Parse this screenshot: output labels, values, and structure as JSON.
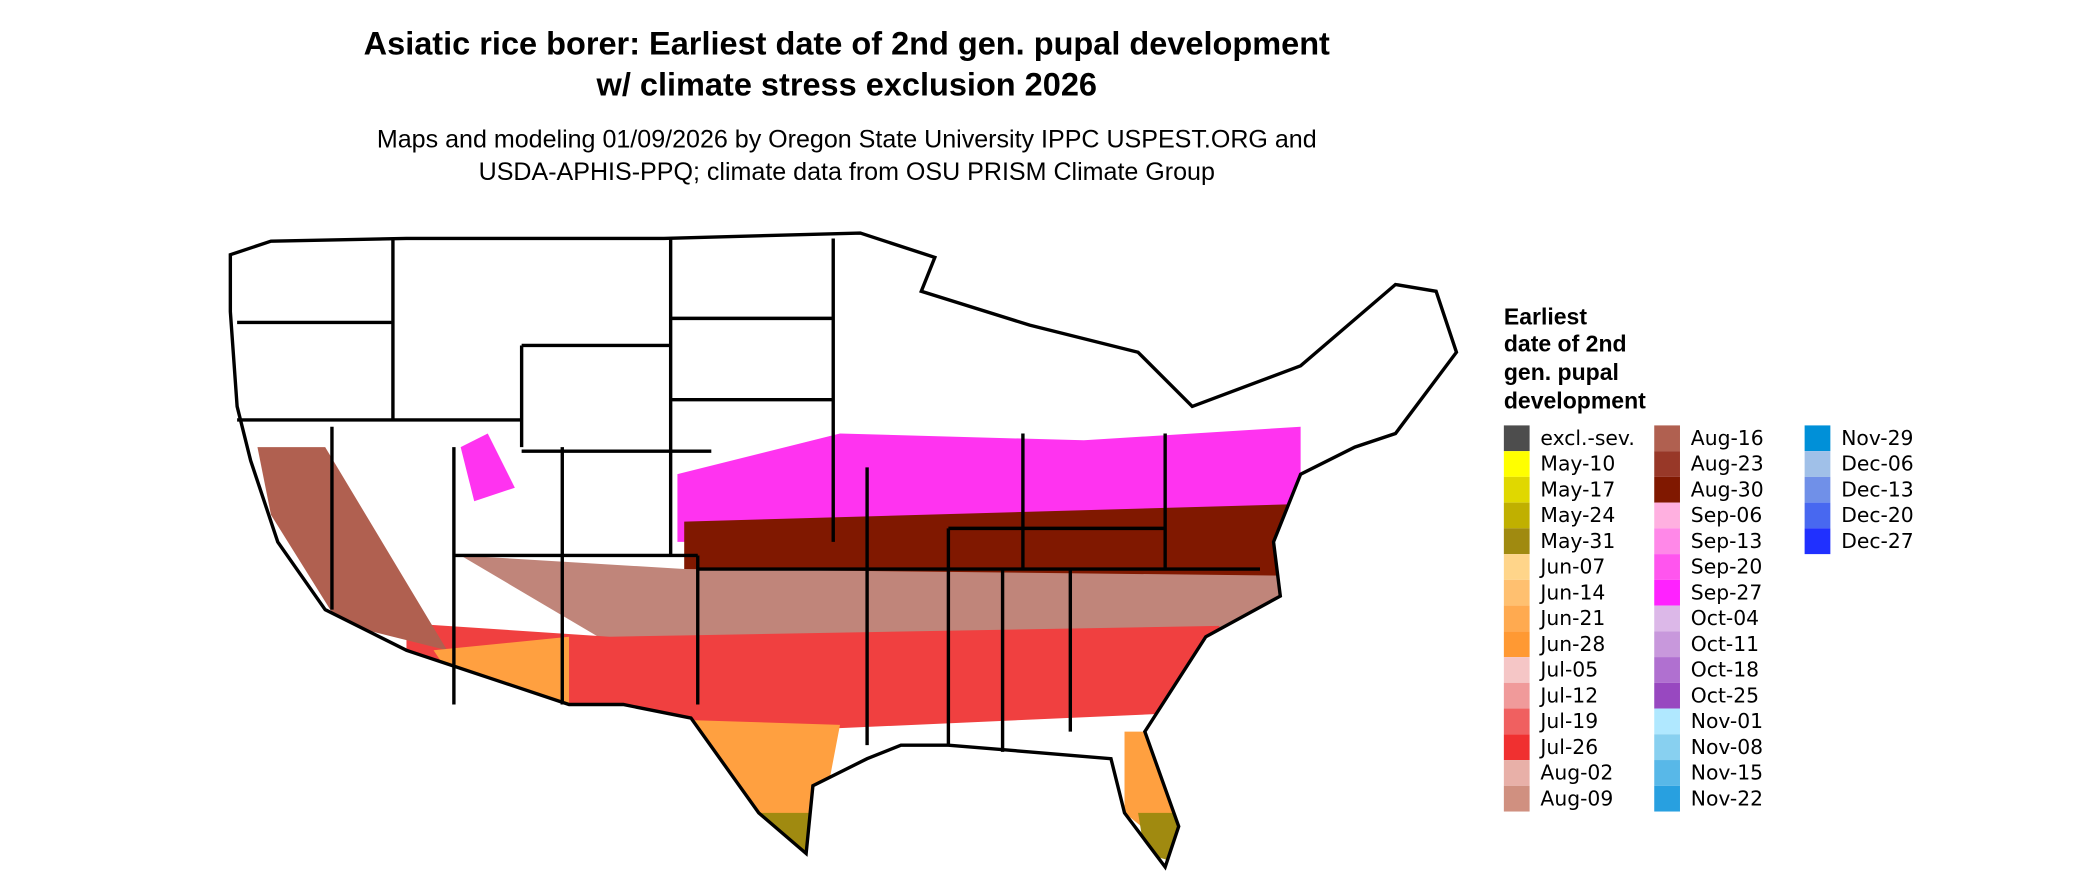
{
  "header": {
    "title": [
      "Asiatic rice borer: Earliest date of 2nd gen. pupal development",
      "w/ climate stress exclusion 2026"
    ],
    "subtitle": [
      "Maps and modeling 01/09/2026 by Oregon State University IPPC USPEST.ORG and",
      "USDA-APHIS-PPQ; climate data from OSU PRISM Climate Group"
    ]
  },
  "legend": {
    "title": [
      "Earliest",
      "date of 2nd",
      "gen. pupal",
      "development"
    ],
    "columns": [
      [
        {
          "label": "excl.-sev.",
          "color": "#4d4d4d"
        },
        {
          "label": "May-10",
          "color": "#ffff00"
        },
        {
          "label": "May-17",
          "color": "#e0d800"
        },
        {
          "label": "May-24",
          "color": "#c0b000"
        },
        {
          "label": "May-31",
          "color": "#a08a10"
        },
        {
          "label": "Jun-07",
          "color": "#ffd58a"
        },
        {
          "label": "Jun-14",
          "color": "#ffc070"
        },
        {
          "label": "Jun-21",
          "color": "#ffaa50"
        },
        {
          "label": "Jun-28",
          "color": "#ff9933"
        },
        {
          "label": "Jul-05",
          "color": "#f5c6c6"
        },
        {
          "label": "Jul-12",
          "color": "#f09a9a"
        },
        {
          "label": "Jul-19",
          "color": "#f06060"
        },
        {
          "label": "Jul-26",
          "color": "#f03030"
        },
        {
          "label": "Aug-02",
          "color": "#e8b0a8"
        },
        {
          "label": "Aug-09",
          "color": "#d09080"
        }
      ],
      [
        {
          "label": "Aug-16",
          "color": "#b06050"
        },
        {
          "label": "Aug-23",
          "color": "#983828"
        },
        {
          "label": "Aug-30",
          "color": "#801800"
        },
        {
          "label": "Sep-06",
          "color": "#ffb0e0"
        },
        {
          "label": "Sep-13",
          "color": "#ff88e8"
        },
        {
          "label": "Sep-20",
          "color": "#ff55ee"
        },
        {
          "label": "Sep-27",
          "color": "#ff22ff"
        },
        {
          "label": "Oct-04",
          "color": "#dcb8e8"
        },
        {
          "label": "Oct-11",
          "color": "#c898dc"
        },
        {
          "label": "Oct-18",
          "color": "#b070d0"
        },
        {
          "label": "Oct-25",
          "color": "#9848c0"
        },
        {
          "label": "Nov-01",
          "color": "#b0e8ff"
        },
        {
          "label": "Nov-08",
          "color": "#88d0f0"
        },
        {
          "label": "Nov-15",
          "color": "#58b8e8"
        },
        {
          "label": "Nov-22",
          "color": "#28a0e0"
        }
      ],
      [
        {
          "label": "Nov-29",
          "color": "#0090d8"
        },
        {
          "label": "Dec-06",
          "color": "#a0c0e8"
        },
        {
          "label": "Dec-13",
          "color": "#7090e8"
        },
        {
          "label": "Dec-20",
          "color": "#4868f0"
        },
        {
          "label": "Dec-27",
          "color": "#2030ff"
        }
      ]
    ]
  }
}
